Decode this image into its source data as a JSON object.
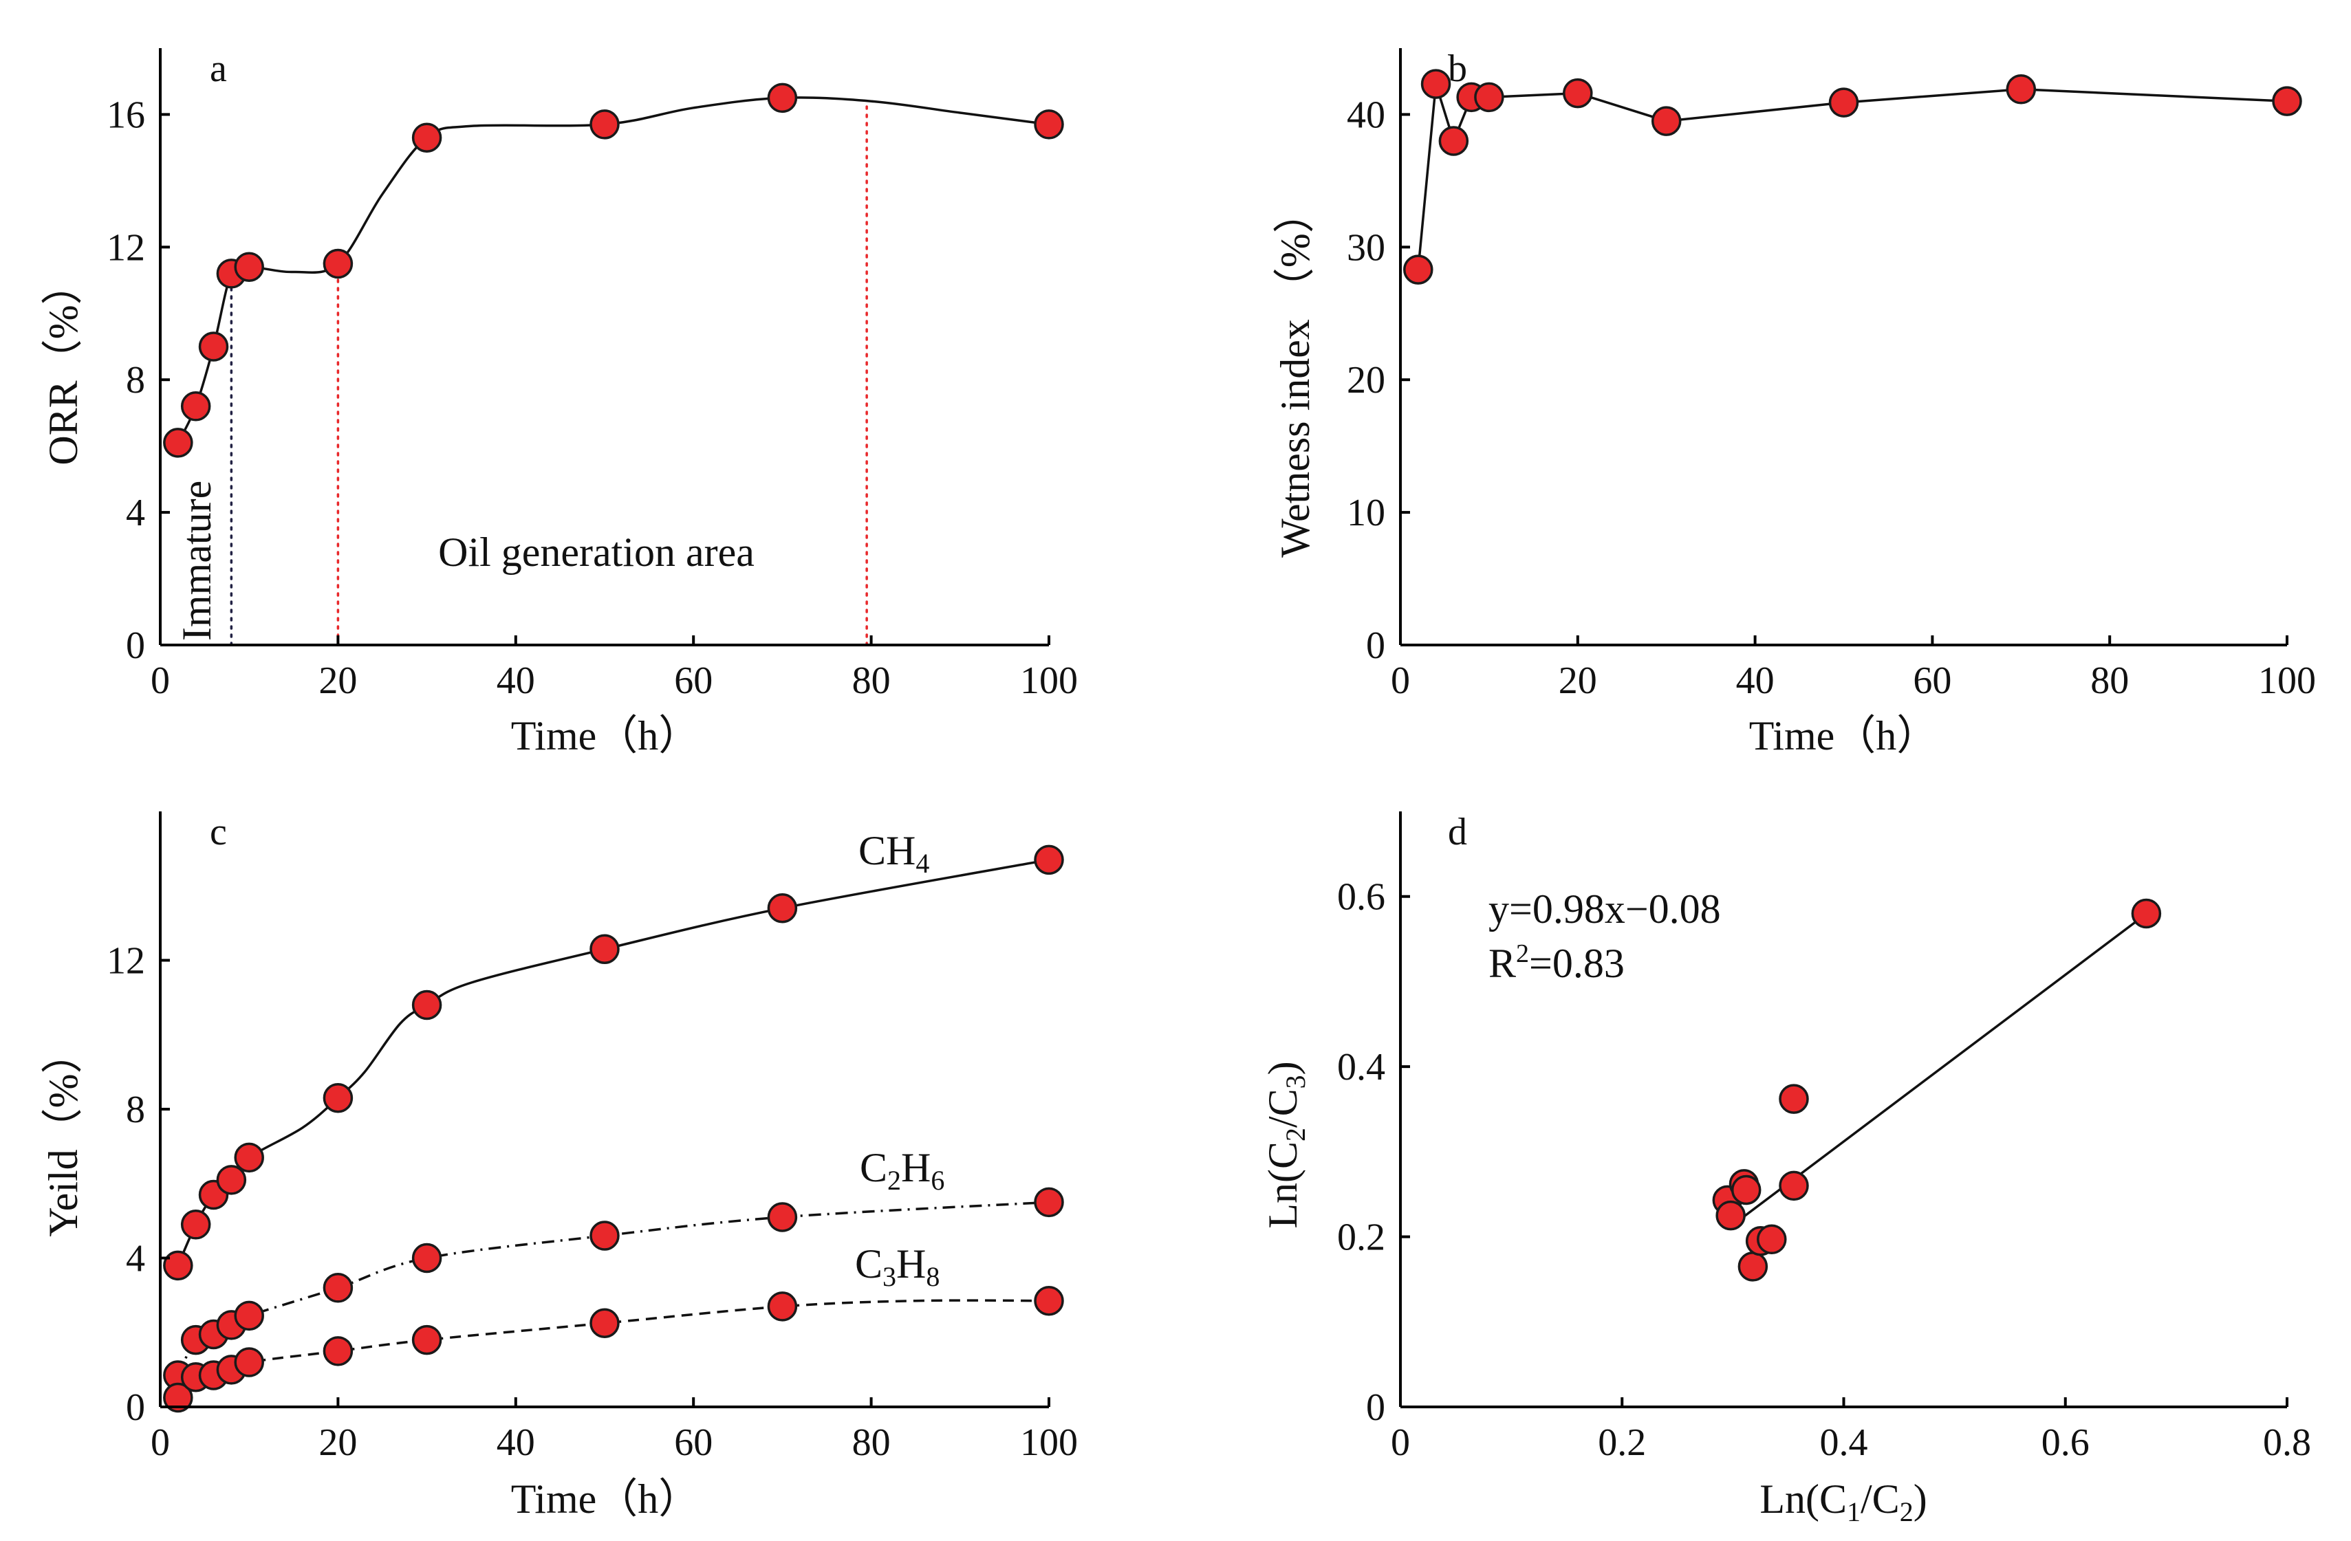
{
  "colors": {
    "marker_fill": "#e8282b",
    "marker_edge": "#1a1a1a",
    "line": "#111111",
    "red_guide": "#e8282b",
    "dark_guide": "#222244"
  },
  "chart_data": [
    {
      "id": "a",
      "type": "line",
      "panel_label": "a",
      "xlabel": "Time（h）",
      "ylabel": "ORR（%）",
      "xlim": [
        0,
        100
      ],
      "ylim": [
        0,
        18
      ],
      "xticks": [
        0,
        20,
        40,
        60,
        80,
        100
      ],
      "yticks": [
        0,
        4,
        8,
        12,
        16
      ],
      "series": [
        {
          "x": [
            2,
            4,
            6,
            8,
            10,
            20,
            30,
            50,
            70,
            100
          ],
          "y": [
            6.1,
            7.2,
            9.0,
            11.2,
            11.4,
            11.5,
            15.3,
            15.7,
            16.5,
            15.7
          ]
        }
      ],
      "curve": [
        [
          2,
          6.1
        ],
        [
          4,
          7.2
        ],
        [
          6,
          9.0
        ],
        [
          8,
          11.2
        ],
        [
          10,
          11.4
        ],
        [
          15,
          11.25
        ],
        [
          20,
          11.5
        ],
        [
          25,
          13.6
        ],
        [
          30,
          15.3
        ],
        [
          35,
          15.65
        ],
        [
          50,
          15.7
        ],
        [
          60,
          16.2
        ],
        [
          70,
          16.5
        ],
        [
          80,
          16.4
        ],
        [
          90,
          16.05
        ],
        [
          100,
          15.7
        ]
      ],
      "vlines": [
        {
          "x": 8,
          "y_top": 11.2,
          "color": "dark"
        },
        {
          "x": 20,
          "y_top": 11.5,
          "color": "red"
        },
        {
          "x": 79.5,
          "y_top": 16.4,
          "color": "red"
        }
      ],
      "annotations": [
        {
          "id": "immature",
          "text": "Immature"
        },
        {
          "id": "oil-area",
          "text": "Oil generation area"
        }
      ]
    },
    {
      "id": "b",
      "type": "line",
      "panel_label": "b",
      "xlabel": "Time（h）",
      "ylabel": "Wetness index （%）",
      "xlim": [
        0,
        100
      ],
      "ylim": [
        0,
        45
      ],
      "xticks": [
        0,
        20,
        40,
        60,
        80,
        100
      ],
      "yticks": [
        0,
        10,
        20,
        30,
        40
      ],
      "series": [
        {
          "x": [
            2,
            4,
            6,
            8,
            10,
            20,
            30,
            50,
            70,
            100
          ],
          "y": [
            28.3,
            42.3,
            38.0,
            41.3,
            41.3,
            41.6,
            39.5,
            40.9,
            41.9,
            41.0
          ]
        }
      ]
    },
    {
      "id": "c",
      "type": "line",
      "panel_label": "c",
      "xlabel": "Time（h）",
      "ylabel": "Yeild（%）",
      "xlim": [
        0,
        100
      ],
      "ylim": [
        0,
        16
      ],
      "xticks": [
        0,
        20,
        40,
        60,
        80,
        100
      ],
      "yticks": [
        0,
        4,
        8,
        12
      ],
      "series": [
        {
          "label_base": "CH",
          "label_sub": "4",
          "dash": "solid",
          "x": [
            2,
            4,
            6,
            8,
            10,
            20,
            30,
            50,
            70,
            100
          ],
          "y": [
            3.8,
            4.9,
            5.7,
            6.1,
            6.7,
            8.3,
            10.8,
            12.3,
            13.4,
            14.7
          ],
          "curve": [
            [
              2,
              3.8
            ],
            [
              4,
              4.9
            ],
            [
              6,
              5.7
            ],
            [
              8,
              6.1
            ],
            [
              10,
              6.7
            ],
            [
              16,
              7.5
            ],
            [
              20,
              8.3
            ],
            [
              23,
              9.0
            ],
            [
              27,
              10.3
            ],
            [
              30,
              10.8
            ],
            [
              35,
              11.4
            ],
            [
              50,
              12.3
            ],
            [
              70,
              13.4
            ],
            [
              100,
              14.7
            ]
          ]
        },
        {
          "label_base": "C",
          "label_sub": "2",
          "label_base2": "H",
          "label_sub2": "6",
          "dash": "dashdot",
          "x": [
            2,
            4,
            6,
            8,
            10,
            20,
            30,
            50,
            70,
            100
          ],
          "y": [
            0.85,
            1.8,
            1.95,
            2.2,
            2.45,
            3.2,
            4.0,
            4.6,
            5.1,
            5.5
          ],
          "curve": [
            [
              2,
              0.85
            ],
            [
              4,
              1.8
            ],
            [
              6,
              1.95
            ],
            [
              8,
              2.2
            ],
            [
              10,
              2.45
            ],
            [
              20,
              3.2
            ],
            [
              30,
              4.0
            ],
            [
              50,
              4.6
            ],
            [
              70,
              5.1
            ],
            [
              100,
              5.5
            ]
          ]
        },
        {
          "label_base": "C",
          "label_sub": "3",
          "label_base2": "H",
          "label_sub2": "8",
          "dash": "dashed",
          "x": [
            2,
            4,
            6,
            8,
            10,
            20,
            30,
            50,
            70,
            100
          ],
          "y": [
            0.25,
            0.8,
            0.85,
            1.0,
            1.2,
            1.5,
            1.8,
            2.25,
            2.7,
            2.85
          ],
          "curve": [
            [
              2,
              0.25
            ],
            [
              4,
              0.8
            ],
            [
              6,
              0.85
            ],
            [
              8,
              1.0
            ],
            [
              10,
              1.2
            ],
            [
              20,
              1.5
            ],
            [
              30,
              1.8
            ],
            [
              50,
              2.25
            ],
            [
              70,
              2.7
            ],
            [
              85,
              2.85
            ],
            [
              100,
              2.85
            ]
          ]
        }
      ]
    },
    {
      "id": "d",
      "type": "scatter",
      "panel_label": "d",
      "xlabel_base": "Ln(C",
      "xlabel_sub1": "1",
      "xlabel_mid": "/C",
      "xlabel_sub2": "2",
      "xlabel_end": ")",
      "ylabel_base": "Ln(C",
      "ylabel_sub1": "2",
      "ylabel_mid": "/C",
      "ylabel_sub2": "3",
      "ylabel_end": ")",
      "xlim": [
        0,
        0.8
      ],
      "ylim": [
        0,
        0.7
      ],
      "xticks": [
        0,
        0.2,
        0.4,
        0.6,
        0.8
      ],
      "yticks": [
        0,
        0.2,
        0.4,
        0.6
      ],
      "points": {
        "x": [
          0.295,
          0.298,
          0.31,
          0.312,
          0.318,
          0.325,
          0.335,
          0.355,
          0.355,
          0.673
        ],
        "y": [
          0.243,
          0.225,
          0.262,
          0.255,
          0.165,
          0.195,
          0.197,
          0.362,
          0.26,
          0.58
        ]
      },
      "fit": {
        "slope": 0.98,
        "intercept": -0.08,
        "x_range": [
          0.295,
          0.673
        ]
      },
      "equation": "y=0.98x−0.08",
      "r2_base": "R",
      "r2_sup": "2",
      "r2_value": "=0.83"
    }
  ]
}
